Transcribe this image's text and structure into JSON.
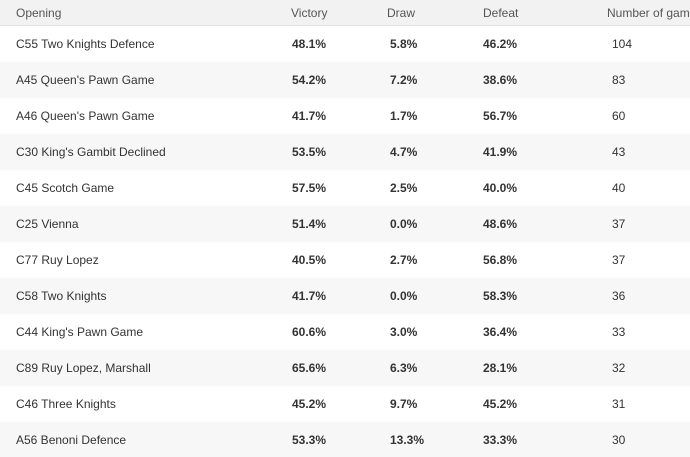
{
  "table": {
    "headers": {
      "opening": "Opening",
      "victory": "Victory",
      "draw": "Draw",
      "defeat": "Defeat",
      "games": "Number of games"
    },
    "rows": [
      {
        "opening": "C55 Two Knights Defence",
        "victory": "48.1%",
        "draw": "5.8%",
        "defeat": "46.2%",
        "games": "104"
      },
      {
        "opening": "A45 Queen's Pawn Game",
        "victory": "54.2%",
        "draw": "7.2%",
        "defeat": "38.6%",
        "games": "83"
      },
      {
        "opening": "A46 Queen's Pawn Game",
        "victory": "41.7%",
        "draw": "1.7%",
        "defeat": "56.7%",
        "games": "60"
      },
      {
        "opening": "C30 King's Gambit Declined",
        "victory": "53.5%",
        "draw": "4.7%",
        "defeat": "41.9%",
        "games": "43"
      },
      {
        "opening": "C45 Scotch Game",
        "victory": "57.5%",
        "draw": "2.5%",
        "defeat": "40.0%",
        "games": "40"
      },
      {
        "opening": "C25 Vienna",
        "victory": "51.4%",
        "draw": "0.0%",
        "defeat": "48.6%",
        "games": "37"
      },
      {
        "opening": "C77 Ruy Lopez",
        "victory": "40.5%",
        "draw": "2.7%",
        "defeat": "56.8%",
        "games": "37"
      },
      {
        "opening": "C58 Two Knights",
        "victory": "41.7%",
        "draw": "0.0%",
        "defeat": "58.3%",
        "games": "36"
      },
      {
        "opening": "C44 King's Pawn Game",
        "victory": "60.6%",
        "draw": "3.0%",
        "defeat": "36.4%",
        "games": "33"
      },
      {
        "opening": "C89 Ruy Lopez, Marshall",
        "victory": "65.6%",
        "draw": "6.3%",
        "defeat": "28.1%",
        "games": "32"
      },
      {
        "opening": "C46 Three Knights",
        "victory": "45.2%",
        "draw": "9.7%",
        "defeat": "45.2%",
        "games": "31"
      },
      {
        "opening": "A56 Benoni Defence",
        "victory": "53.3%",
        "draw": "13.3%",
        "defeat": "33.3%",
        "games": "30"
      }
    ]
  }
}
